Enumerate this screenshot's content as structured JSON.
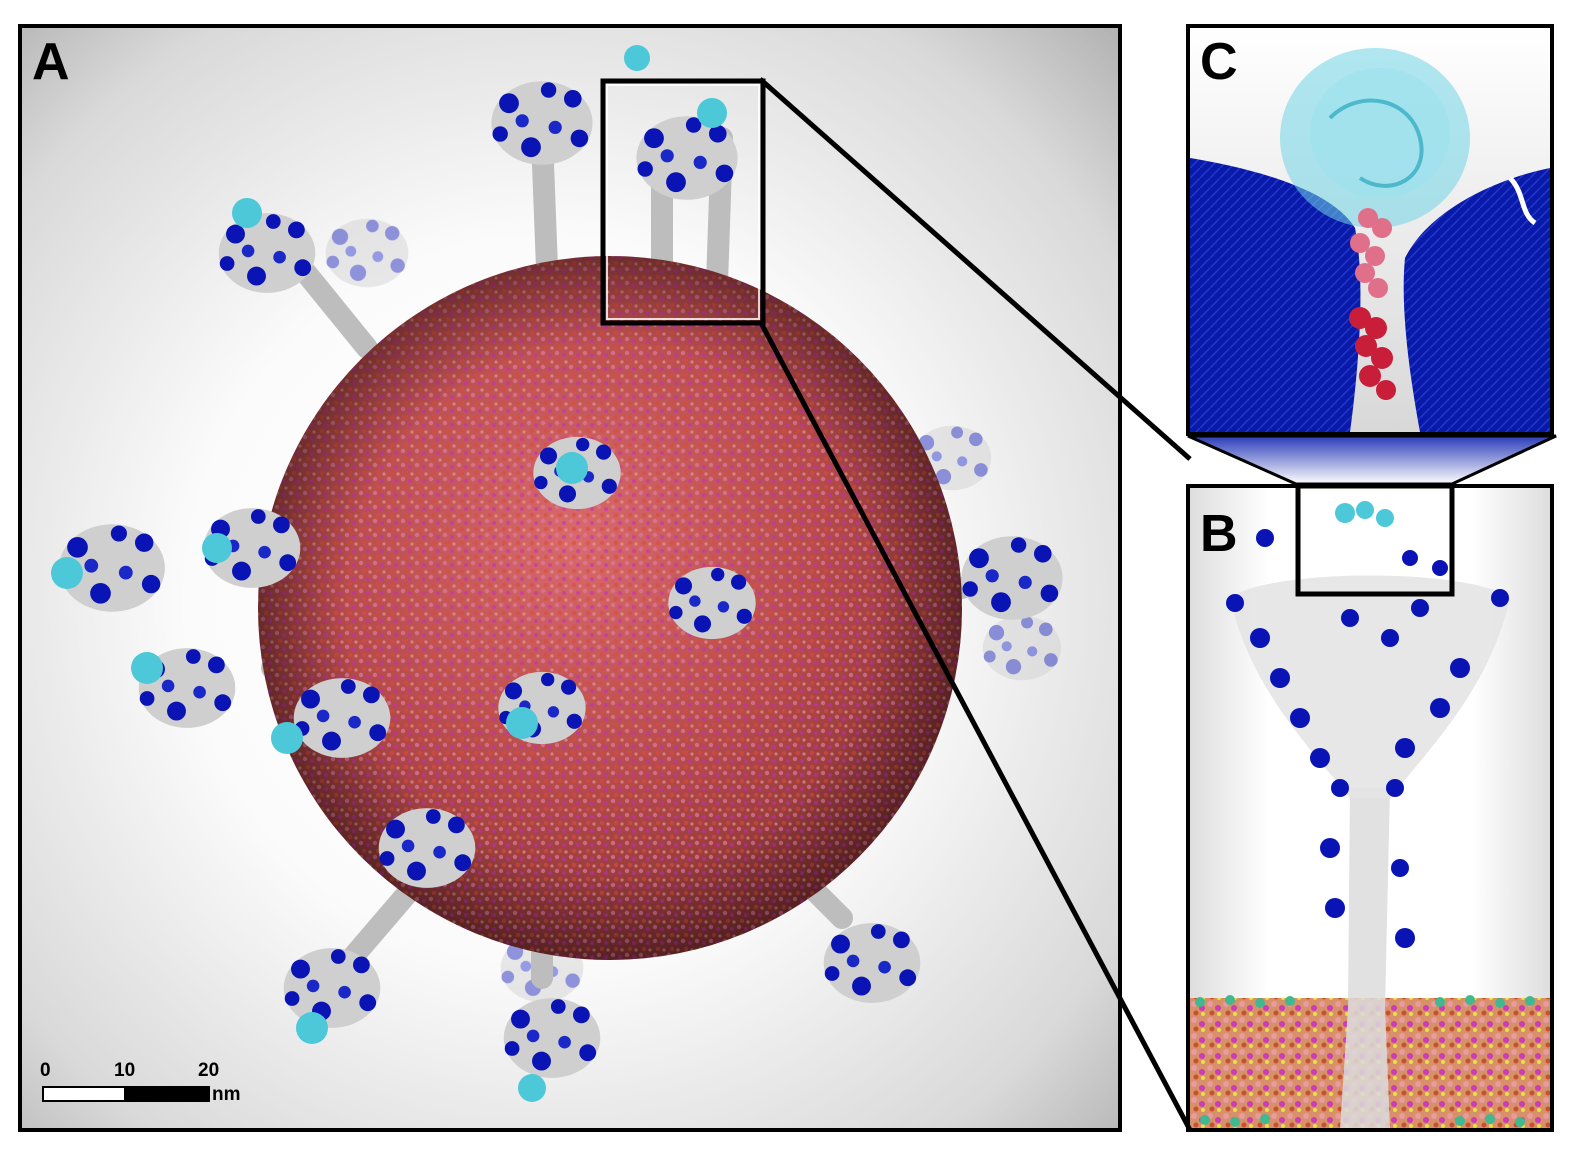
{
  "panels": {
    "a": {
      "label": "A"
    },
    "b": {
      "label": "B"
    },
    "c": {
      "label": "C"
    }
  },
  "scalebar": {
    "ticks": [
      "0",
      "10",
      "20"
    ],
    "unit": "nm"
  },
  "colors": {
    "glycan": "#0a14b4",
    "protein": "#c8c8c8",
    "receptor_binding": "#4cc8d8",
    "membrane": "#b4463c",
    "membrane_lipid_magenta": "#c828c8",
    "frame": "#000000",
    "zoom_fill": "#3a52c0"
  },
  "icons": {
    "virion": "virion-sphere-icon",
    "spike": "spike-protein-icon",
    "zoom": "zoom-connector-icon"
  }
}
